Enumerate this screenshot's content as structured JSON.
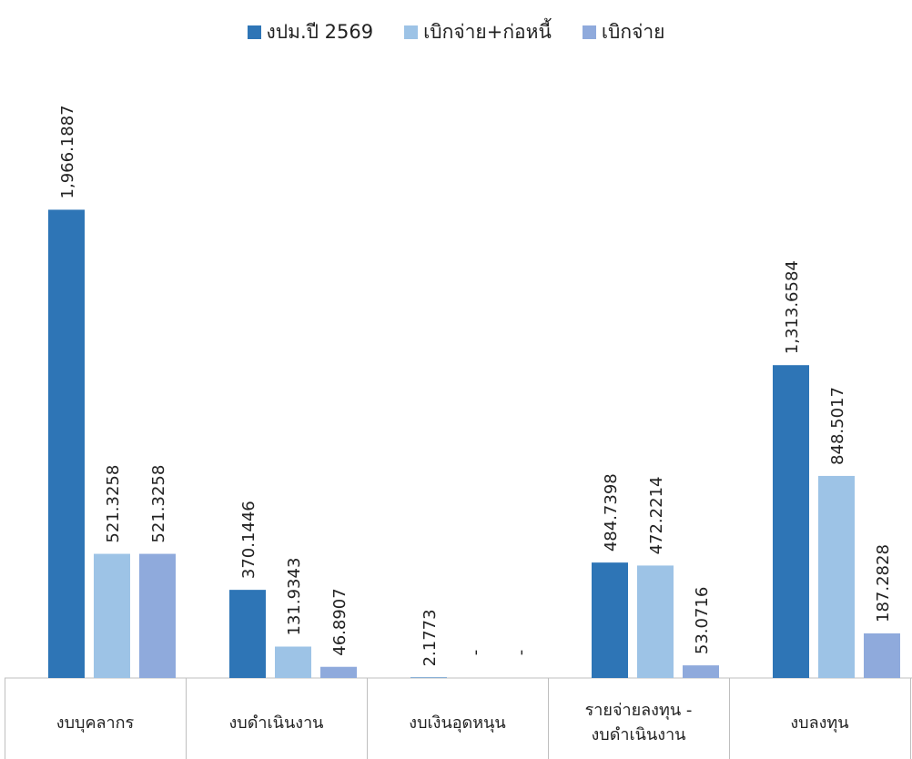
{
  "chart_data": {
    "type": "bar",
    "categories": [
      [
        "งบบุคลากร"
      ],
      [
        "งบดำเนินงาน"
      ],
      [
        "งบเงินอุดหนุน"
      ],
      [
        "รายจ่ายลงทุน -",
        "งบดำเนินงาน"
      ],
      [
        "งบลงทุน"
      ]
    ],
    "series": [
      {
        "name": "งปม.ปี 2569",
        "color": "#2E75B6",
        "values": [
          1966.1887,
          370.1446,
          2.1773,
          484.7398,
          1313.6584
        ],
        "labels": [
          "1,966.1887",
          "370.1446",
          "2.1773",
          "484.7398",
          "1,313.6584"
        ]
      },
      {
        "name": "เบิกจ่าย+ก่อหนี้",
        "color": "#9DC3E6",
        "values": [
          521.3258,
          131.9343,
          null,
          472.2214,
          848.5017
        ],
        "labels": [
          "521.3258",
          "131.9343",
          "-",
          "472.2214",
          "848.5017"
        ]
      },
      {
        "name": "เบิกจ่าย",
        "color": "#8FAADC",
        "values": [
          521.3258,
          46.8907,
          null,
          53.0716,
          187.2828
        ],
        "labels": [
          "521.3258",
          "46.8907",
          "-",
          "53.0716",
          "187.2828"
        ]
      }
    ],
    "legend_position": "top-center",
    "grid": false
  }
}
